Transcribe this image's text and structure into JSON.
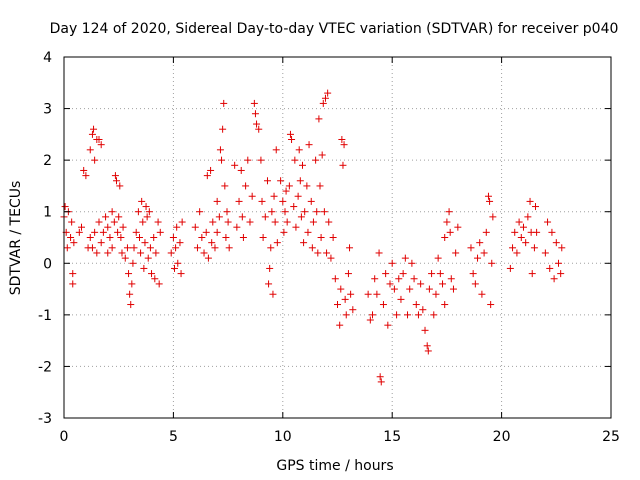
{
  "chart_data": {
    "type": "scatter",
    "title": "Day 124 of 2020, Sidereal Day-to-day VTEC variation (SDTVAR) for receiver p040",
    "xlabel": "GPS time / hours",
    "ylabel": "SDTVAR / TECUs",
    "xlim": [
      0,
      25
    ],
    "ylim": [
      -3,
      4
    ],
    "xticks": [
      "0",
      "5",
      "10",
      "15",
      "20",
      "25"
    ],
    "yticks": [
      "-3",
      "-2",
      "-1",
      "0",
      "1",
      "2",
      "3",
      "4"
    ],
    "grid": true,
    "marker": "plus",
    "color": "#e00000",
    "series": [
      {
        "name": "SDTVAR p040",
        "points": [
          [
            0.0,
            0.9
          ],
          [
            0.05,
            1.1
          ],
          [
            0.1,
            0.6
          ],
          [
            0.15,
            0.3
          ],
          [
            0.2,
            1.0
          ],
          [
            0.3,
            0.5
          ],
          [
            0.35,
            0.8
          ],
          [
            0.4,
            -0.4
          ],
          [
            0.4,
            -0.2
          ],
          [
            0.45,
            0.4
          ],
          [
            0.7,
            0.6
          ],
          [
            0.8,
            0.7
          ],
          [
            0.9,
            1.8
          ],
          [
            1.0,
            1.7
          ],
          [
            1.1,
            0.3
          ],
          [
            1.2,
            2.2
          ],
          [
            1.3,
            2.5
          ],
          [
            1.35,
            2.6
          ],
          [
            1.4,
            2.0
          ],
          [
            1.5,
            2.4
          ],
          [
            1.6,
            2.4
          ],
          [
            1.7,
            2.3
          ],
          [
            1.2,
            0.5
          ],
          [
            1.3,
            0.3
          ],
          [
            1.4,
            0.6
          ],
          [
            1.5,
            0.2
          ],
          [
            1.6,
            0.8
          ],
          [
            1.7,
            0.4
          ],
          [
            1.8,
            0.6
          ],
          [
            1.9,
            0.9
          ],
          [
            2.0,
            0.7
          ],
          [
            2.0,
            0.2
          ],
          [
            2.1,
            0.5
          ],
          [
            2.2,
            1.0
          ],
          [
            2.2,
            0.3
          ],
          [
            2.3,
            0.8
          ],
          [
            2.35,
            1.7
          ],
          [
            2.4,
            1.6
          ],
          [
            2.45,
            0.6
          ],
          [
            2.5,
            0.9
          ],
          [
            2.55,
            1.5
          ],
          [
            2.6,
            0.5
          ],
          [
            2.65,
            0.2
          ],
          [
            2.7,
            0.7
          ],
          [
            2.8,
            0.1
          ],
          [
            2.9,
            0.3
          ],
          [
            2.95,
            -0.2
          ],
          [
            3.0,
            -0.6
          ],
          [
            3.05,
            -0.8
          ],
          [
            3.1,
            -0.4
          ],
          [
            3.15,
            0.0
          ],
          [
            3.2,
            0.3
          ],
          [
            3.3,
            0.6
          ],
          [
            3.4,
            1.0
          ],
          [
            3.45,
            0.5
          ],
          [
            3.5,
            0.2
          ],
          [
            3.55,
            1.2
          ],
          [
            3.6,
            0.8
          ],
          [
            3.65,
            -0.1
          ],
          [
            3.7,
            0.4
          ],
          [
            3.75,
            1.1
          ],
          [
            3.8,
            0.9
          ],
          [
            3.85,
            0.1
          ],
          [
            3.9,
            1.0
          ],
          [
            3.95,
            0.3
          ],
          [
            4.0,
            -0.2
          ],
          [
            4.1,
            0.5
          ],
          [
            4.15,
            -0.3
          ],
          [
            4.2,
            0.2
          ],
          [
            4.3,
            0.8
          ],
          [
            4.35,
            -0.4
          ],
          [
            4.4,
            0.6
          ],
          [
            4.9,
            0.2
          ],
          [
            5.0,
            0.5
          ],
          [
            5.05,
            -0.1
          ],
          [
            5.1,
            0.3
          ],
          [
            5.15,
            0.7
          ],
          [
            5.2,
            0.0
          ],
          [
            5.3,
            0.4
          ],
          [
            5.35,
            -0.2
          ],
          [
            5.4,
            0.8
          ],
          [
            6.0,
            0.7
          ],
          [
            6.1,
            0.3
          ],
          [
            6.2,
            1.0
          ],
          [
            6.3,
            0.5
          ],
          [
            6.4,
            0.2
          ],
          [
            6.5,
            0.6
          ],
          [
            6.55,
            1.7
          ],
          [
            6.6,
            0.1
          ],
          [
            6.7,
            1.8
          ],
          [
            6.75,
            0.4
          ],
          [
            6.8,
            0.8
          ],
          [
            6.9,
            0.3
          ],
          [
            7.0,
            0.6
          ],
          [
            7.0,
            1.2
          ],
          [
            7.1,
            0.9
          ],
          [
            7.15,
            2.2
          ],
          [
            7.2,
            2.0
          ],
          [
            7.25,
            2.6
          ],
          [
            7.3,
            3.1
          ],
          [
            7.35,
            1.5
          ],
          [
            7.4,
            0.5
          ],
          [
            7.45,
            1.0
          ],
          [
            7.5,
            0.8
          ],
          [
            7.55,
            0.3
          ],
          [
            7.8,
            1.9
          ],
          [
            7.9,
            0.7
          ],
          [
            8.0,
            1.2
          ],
          [
            8.1,
            1.8
          ],
          [
            8.15,
            0.9
          ],
          [
            8.2,
            0.5
          ],
          [
            8.3,
            1.5
          ],
          [
            8.4,
            2.0
          ],
          [
            8.5,
            0.8
          ],
          [
            8.6,
            1.3
          ],
          [
            8.7,
            3.1
          ],
          [
            8.75,
            2.9
          ],
          [
            8.8,
            2.7
          ],
          [
            8.9,
            2.6
          ],
          [
            9.0,
            2.0
          ],
          [
            9.05,
            1.2
          ],
          [
            9.1,
            0.5
          ],
          [
            9.2,
            0.9
          ],
          [
            9.3,
            1.6
          ],
          [
            9.35,
            -0.4
          ],
          [
            9.4,
            -0.1
          ],
          [
            9.45,
            0.3
          ],
          [
            9.5,
            1.0
          ],
          [
            9.55,
            -0.6
          ],
          [
            9.6,
            1.3
          ],
          [
            9.65,
            0.8
          ],
          [
            9.7,
            2.2
          ],
          [
            9.75,
            0.4
          ],
          [
            9.9,
            1.6
          ],
          [
            10.0,
            1.2
          ],
          [
            10.05,
            0.6
          ],
          [
            10.1,
            1.0
          ],
          [
            10.15,
            1.4
          ],
          [
            10.2,
            0.8
          ],
          [
            10.3,
            1.5
          ],
          [
            10.35,
            2.5
          ],
          [
            10.4,
            2.4
          ],
          [
            10.5,
            1.1
          ],
          [
            10.55,
            2.0
          ],
          [
            10.6,
            0.7
          ],
          [
            10.7,
            1.3
          ],
          [
            10.75,
            2.2
          ],
          [
            10.8,
            1.6
          ],
          [
            10.85,
            0.9
          ],
          [
            10.9,
            1.9
          ],
          [
            10.95,
            0.4
          ],
          [
            11.0,
            1.0
          ],
          [
            11.1,
            1.5
          ],
          [
            11.15,
            0.6
          ],
          [
            11.2,
            2.3
          ],
          [
            11.3,
            1.2
          ],
          [
            11.35,
            0.3
          ],
          [
            11.4,
            0.8
          ],
          [
            11.5,
            2.0
          ],
          [
            11.55,
            1.0
          ],
          [
            11.6,
            0.2
          ],
          [
            11.65,
            2.8
          ],
          [
            11.7,
            1.5
          ],
          [
            11.75,
            0.5
          ],
          [
            11.8,
            2.1
          ],
          [
            11.85,
            3.1
          ],
          [
            11.9,
            1.0
          ],
          [
            11.95,
            3.2
          ],
          [
            12.0,
            0.2
          ],
          [
            12.05,
            3.3
          ],
          [
            12.1,
            0.8
          ],
          [
            12.2,
            0.1
          ],
          [
            12.3,
            0.5
          ],
          [
            12.4,
            -0.3
          ],
          [
            12.5,
            -0.8
          ],
          [
            12.6,
            -1.2
          ],
          [
            12.65,
            -0.5
          ],
          [
            12.7,
            2.4
          ],
          [
            12.75,
            1.9
          ],
          [
            12.8,
            2.3
          ],
          [
            12.85,
            -0.7
          ],
          [
            12.9,
            -1.0
          ],
          [
            13.0,
            -0.2
          ],
          [
            13.05,
            0.3
          ],
          [
            13.1,
            -0.6
          ],
          [
            13.2,
            -0.9
          ],
          [
            13.9,
            -0.6
          ],
          [
            14.0,
            -1.1
          ],
          [
            14.1,
            -1.0
          ],
          [
            14.2,
            -0.3
          ],
          [
            14.3,
            -0.6
          ],
          [
            14.4,
            0.2
          ],
          [
            14.45,
            -2.2
          ],
          [
            14.5,
            -2.3
          ],
          [
            14.6,
            -0.8
          ],
          [
            14.7,
            -0.2
          ],
          [
            14.8,
            -1.2
          ],
          [
            14.9,
            -0.4
          ],
          [
            15.0,
            0.0
          ],
          [
            15.1,
            -0.5
          ],
          [
            15.2,
            -1.0
          ],
          [
            15.3,
            -0.3
          ],
          [
            15.4,
            -0.7
          ],
          [
            15.5,
            -0.2
          ],
          [
            15.6,
            0.1
          ],
          [
            15.7,
            -1.0
          ],
          [
            15.8,
            -0.5
          ],
          [
            15.9,
            0.0
          ],
          [
            16.0,
            -0.3
          ],
          [
            16.1,
            -0.8
          ],
          [
            16.2,
            -1.0
          ],
          [
            16.3,
            -0.4
          ],
          [
            16.4,
            -0.9
          ],
          [
            16.5,
            -1.3
          ],
          [
            16.6,
            -1.6
          ],
          [
            16.65,
            -1.7
          ],
          [
            16.7,
            -0.5
          ],
          [
            16.8,
            -0.2
          ],
          [
            16.9,
            -1.0
          ],
          [
            17.0,
            -0.6
          ],
          [
            17.1,
            0.1
          ],
          [
            17.2,
            -0.2
          ],
          [
            17.3,
            -0.4
          ],
          [
            17.4,
            -0.8
          ],
          [
            17.4,
            0.5
          ],
          [
            17.5,
            0.8
          ],
          [
            17.6,
            1.0
          ],
          [
            17.65,
            0.6
          ],
          [
            17.7,
            -0.3
          ],
          [
            17.8,
            -0.5
          ],
          [
            17.9,
            0.2
          ],
          [
            18.0,
            0.7
          ],
          [
            18.6,
            0.3
          ],
          [
            18.7,
            -0.2
          ],
          [
            18.8,
            -0.4
          ],
          [
            18.9,
            0.1
          ],
          [
            19.0,
            0.4
          ],
          [
            19.1,
            -0.6
          ],
          [
            19.2,
            0.2
          ],
          [
            19.3,
            0.6
          ],
          [
            19.4,
            1.3
          ],
          [
            19.45,
            1.2
          ],
          [
            19.5,
            -0.8
          ],
          [
            19.55,
            0.0
          ],
          [
            19.6,
            0.9
          ],
          [
            20.4,
            -0.1
          ],
          [
            20.5,
            0.3
          ],
          [
            20.6,
            0.6
          ],
          [
            20.7,
            0.2
          ],
          [
            20.8,
            0.8
          ],
          [
            20.9,
            0.5
          ],
          [
            21.0,
            0.7
          ],
          [
            21.1,
            0.4
          ],
          [
            21.2,
            0.9
          ],
          [
            21.3,
            1.2
          ],
          [
            21.35,
            0.6
          ],
          [
            21.4,
            -0.2
          ],
          [
            21.5,
            0.3
          ],
          [
            21.55,
            1.1
          ],
          [
            21.6,
            0.6
          ],
          [
            22.0,
            0.2
          ],
          [
            22.1,
            0.8
          ],
          [
            22.2,
            -0.1
          ],
          [
            22.3,
            0.6
          ],
          [
            22.4,
            -0.3
          ],
          [
            22.5,
            0.4
          ],
          [
            22.6,
            0.0
          ],
          [
            22.7,
            -0.2
          ],
          [
            22.75,
            0.3
          ]
        ]
      }
    ]
  }
}
